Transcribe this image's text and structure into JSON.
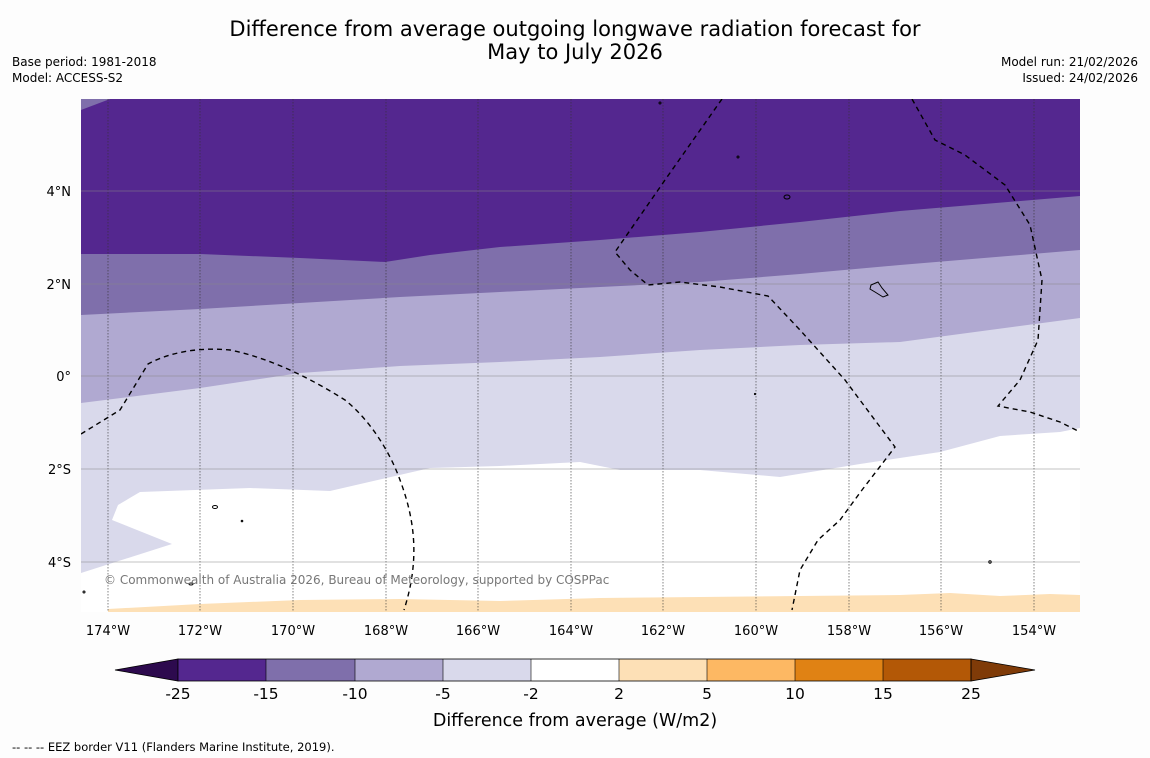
{
  "title": {
    "line1": "Difference from average outgoing longwave radiation forecast for",
    "line2": "May to July 2026"
  },
  "meta_left": {
    "base_period": "Base period: 1981-2018",
    "model": "Model: ACCESS-S2"
  },
  "meta_right": {
    "model_run": "Model run: 21/02/2026",
    "issued": "Issued: 24/02/2026"
  },
  "map": {
    "lat_ticks": [
      {
        "label": "4°N",
        "lat": 4
      },
      {
        "label": "2°N",
        "lat": 2
      },
      {
        "label": "0°",
        "lat": 0
      },
      {
        "label": "2°S",
        "lat": -2
      },
      {
        "label": "4°S",
        "lat": -4
      }
    ],
    "lon_ticks": [
      {
        "label": "174°W",
        "lon": -174
      },
      {
        "label": "172°W",
        "lon": -172
      },
      {
        "label": "170°W",
        "lon": -170
      },
      {
        "label": "168°W",
        "lon": -168
      },
      {
        "label": "166°W",
        "lon": -166
      },
      {
        "label": "164°W",
        "lon": -164
      },
      {
        "label": "162°W",
        "lon": -162
      },
      {
        "label": "160°W",
        "lon": -160
      },
      {
        "label": "158°W",
        "lon": -158
      },
      {
        "label": "156°W",
        "lon": -156
      },
      {
        "label": "154°W",
        "lon": -154
      }
    ],
    "credit": "© Commonwealth of Australia 2026, Bureau of Meteorology, supported by COSPPac"
  },
  "colorbar": {
    "title": "Difference from average (W/m2)",
    "labels": [
      "-25",
      "-15",
      "-10",
      "-5",
      "-2",
      "2",
      "5",
      "10",
      "15",
      "25"
    ],
    "colors": {
      "below_min": "#2d0a4e",
      "b1": "#54278f",
      "b2": "#7f6fab",
      "b3": "#b0a9d1",
      "b4": "#d9d9eb",
      "b5": "#ffffff",
      "b6": "#fde0b6",
      "b7": "#fdb863",
      "b8": "#e08214",
      "b9": "#b35806",
      "above_max": "#7f3b08"
    }
  },
  "footer": "--  --  -- EEZ border V11 (Flanders Marine Institute, 2019)."
}
